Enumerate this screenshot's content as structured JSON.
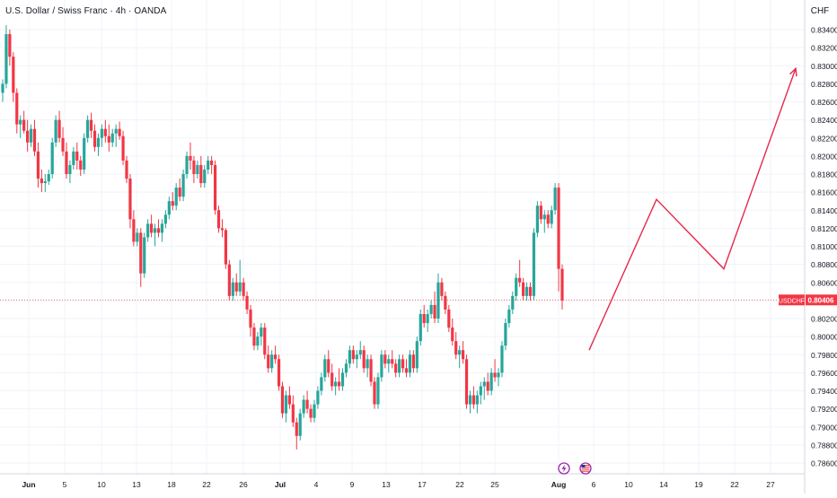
{
  "header": {
    "title": "U.S. Dollar / Swiss Franc · 4h · OANDA",
    "currency": "CHF"
  },
  "price_label": {
    "symbol": "USDCHF",
    "value": "0.80406"
  },
  "colors": {
    "up": "#26a69a",
    "down": "#f23645",
    "grid": "#f0f3fa",
    "axis_text": "#131722",
    "price_line": "#f23645",
    "projection": "#e5294a"
  },
  "event_icons": [
    "lightning-icon",
    "us-flag-icon"
  ],
  "chart_data": {
    "type": "candlestick",
    "title": "U.S. Dollar / Swiss Franc · 4h · OANDA",
    "ylabel": "CHF",
    "ylim": [
      0.785,
      0.8355
    ],
    "y_ticks": [
      "0.83400",
      "0.83200",
      "0.83000",
      "0.82800",
      "0.82600",
      "0.82400",
      "0.82200",
      "0.82000",
      "0.81800",
      "0.81600",
      "0.81400",
      "0.81200",
      "0.81000",
      "0.80800",
      "0.80600",
      "0.80400",
      "0.80200",
      "0.80000",
      "0.79800",
      "0.79600",
      "0.79400",
      "0.79200",
      "0.79000",
      "0.78800",
      "0.78600"
    ],
    "x_ticks": [
      "Jun",
      "5",
      "10",
      "13",
      "18",
      "22",
      "26",
      "Jul",
      "4",
      "9",
      "13",
      "17",
      "22",
      "25",
      "Aug",
      "6",
      "10",
      "14",
      "19",
      "22",
      "27"
    ],
    "x_ticks_bold": [
      "Jun",
      "Jul",
      "Aug"
    ],
    "last_price": 0.80406,
    "grid": true,
    "series": [
      {
        "type": "candles",
        "values": [
          [
            0.827,
            0.8285,
            0.826,
            0.828
          ],
          [
            0.828,
            0.8345,
            0.8275,
            0.8335
          ],
          [
            0.8335,
            0.834,
            0.83,
            0.831
          ],
          [
            0.831,
            0.8315,
            0.826,
            0.827
          ],
          [
            0.827,
            0.8275,
            0.8225,
            0.8235
          ],
          [
            0.8235,
            0.8245,
            0.822,
            0.824
          ],
          [
            0.824,
            0.825,
            0.8225,
            0.8228
          ],
          [
            0.8228,
            0.824,
            0.8205,
            0.8215
          ],
          [
            0.8215,
            0.8235,
            0.821,
            0.823
          ],
          [
            0.823,
            0.824,
            0.82,
            0.8205
          ],
          [
            0.8205,
            0.8215,
            0.8165,
            0.8175
          ],
          [
            0.8175,
            0.8185,
            0.816,
            0.817
          ],
          [
            0.817,
            0.818,
            0.816,
            0.8172
          ],
          [
            0.8172,
            0.8185,
            0.8168,
            0.818
          ],
          [
            0.818,
            0.822,
            0.8175,
            0.8215
          ],
          [
            0.8215,
            0.8245,
            0.821,
            0.824
          ],
          [
            0.824,
            0.825,
            0.8215,
            0.822
          ],
          [
            0.822,
            0.8232,
            0.82,
            0.8205
          ],
          [
            0.8205,
            0.8215,
            0.8175,
            0.818
          ],
          [
            0.818,
            0.8195,
            0.817,
            0.819
          ],
          [
            0.819,
            0.821,
            0.8185,
            0.8205
          ],
          [
            0.8205,
            0.8215,
            0.8185,
            0.8195
          ],
          [
            0.8195,
            0.82,
            0.8178,
            0.8185
          ],
          [
            0.8185,
            0.8225,
            0.818,
            0.822
          ],
          [
            0.822,
            0.8245,
            0.8215,
            0.824
          ],
          [
            0.824,
            0.8248,
            0.822,
            0.8228
          ],
          [
            0.8228,
            0.8235,
            0.8205,
            0.821
          ],
          [
            0.821,
            0.8225,
            0.82,
            0.822
          ],
          [
            0.822,
            0.8235,
            0.821,
            0.823
          ],
          [
            0.823,
            0.824,
            0.8215,
            0.8222
          ],
          [
            0.8222,
            0.8235,
            0.8205,
            0.8215
          ],
          [
            0.8215,
            0.823,
            0.821,
            0.8225
          ],
          [
            0.8225,
            0.8235,
            0.821,
            0.823
          ],
          [
            0.823,
            0.8238,
            0.8218,
            0.8222
          ],
          [
            0.8222,
            0.8228,
            0.819,
            0.8195
          ],
          [
            0.8195,
            0.82,
            0.817,
            0.8175
          ],
          [
            0.8175,
            0.818,
            0.812,
            0.813
          ],
          [
            0.813,
            0.814,
            0.81,
            0.8105
          ],
          [
            0.8105,
            0.812,
            0.81,
            0.8115
          ],
          [
            0.8115,
            0.812,
            0.8055,
            0.807
          ],
          [
            0.807,
            0.8115,
            0.8065,
            0.811
          ],
          [
            0.811,
            0.813,
            0.8105,
            0.8125
          ],
          [
            0.8125,
            0.8135,
            0.811,
            0.8115
          ],
          [
            0.8115,
            0.8125,
            0.81,
            0.812
          ],
          [
            0.812,
            0.813,
            0.811,
            0.8115
          ],
          [
            0.8115,
            0.813,
            0.8105,
            0.8125
          ],
          [
            0.8125,
            0.814,
            0.812,
            0.8135
          ],
          [
            0.8135,
            0.8155,
            0.813,
            0.815
          ],
          [
            0.815,
            0.816,
            0.814,
            0.8145
          ],
          [
            0.8145,
            0.817,
            0.814,
            0.8165
          ],
          [
            0.8165,
            0.8175,
            0.815,
            0.8155
          ],
          [
            0.8155,
            0.8185,
            0.815,
            0.818
          ],
          [
            0.818,
            0.8205,
            0.8175,
            0.82
          ],
          [
            0.82,
            0.8215,
            0.8185,
            0.8195
          ],
          [
            0.8195,
            0.82,
            0.817,
            0.818
          ],
          [
            0.818,
            0.8195,
            0.8175,
            0.819
          ],
          [
            0.819,
            0.82,
            0.8165,
            0.817
          ],
          [
            0.817,
            0.819,
            0.8165,
            0.8185
          ],
          [
            0.8185,
            0.82,
            0.818,
            0.8195
          ],
          [
            0.8195,
            0.82,
            0.818,
            0.819
          ],
          [
            0.819,
            0.8195,
            0.8135,
            0.814
          ],
          [
            0.814,
            0.8145,
            0.8115,
            0.812
          ],
          [
            0.812,
            0.813,
            0.811,
            0.8118
          ],
          [
            0.8118,
            0.812,
            0.8075,
            0.808
          ],
          [
            0.808,
            0.8085,
            0.804,
            0.8045
          ],
          [
            0.8045,
            0.8065,
            0.804,
            0.806
          ],
          [
            0.806,
            0.807,
            0.8045,
            0.805
          ],
          [
            0.805,
            0.8085,
            0.8045,
            0.806
          ],
          [
            0.806,
            0.8065,
            0.804,
            0.8045
          ],
          [
            0.8045,
            0.805,
            0.8025,
            0.803
          ],
          [
            0.803,
            0.8035,
            0.8,
            0.801
          ],
          [
            0.801,
            0.8015,
            0.7985,
            0.799
          ],
          [
            0.799,
            0.8005,
            0.7985,
            0.8
          ],
          [
            0.8,
            0.8015,
            0.799,
            0.801
          ],
          [
            0.801,
            0.8015,
            0.7975,
            0.798
          ],
          [
            0.798,
            0.799,
            0.796,
            0.7965
          ],
          [
            0.7965,
            0.7985,
            0.796,
            0.798
          ],
          [
            0.798,
            0.799,
            0.797,
            0.7975
          ],
          [
            0.7975,
            0.798,
            0.794,
            0.7945
          ],
          [
            0.7945,
            0.795,
            0.791,
            0.7915
          ],
          [
            0.7915,
            0.794,
            0.7905,
            0.7935
          ],
          [
            0.7935,
            0.7945,
            0.792,
            0.7925
          ],
          [
            0.7925,
            0.7935,
            0.79,
            0.7905
          ],
          [
            0.7905,
            0.791,
            0.7875,
            0.789
          ],
          [
            0.789,
            0.792,
            0.7885,
            0.7915
          ],
          [
            0.7915,
            0.7935,
            0.791,
            0.793
          ],
          [
            0.793,
            0.794,
            0.7915,
            0.792
          ],
          [
            0.792,
            0.7925,
            0.7905,
            0.791
          ],
          [
            0.791,
            0.793,
            0.7905,
            0.7925
          ],
          [
            0.7925,
            0.7945,
            0.792,
            0.794
          ],
          [
            0.794,
            0.796,
            0.7935,
            0.7955
          ],
          [
            0.7955,
            0.798,
            0.795,
            0.7975
          ],
          [
            0.7975,
            0.7985,
            0.7955,
            0.796
          ],
          [
            0.796,
            0.797,
            0.794,
            0.7945
          ],
          [
            0.7945,
            0.7955,
            0.7935,
            0.795
          ],
          [
            0.795,
            0.7965,
            0.794,
            0.7945
          ],
          [
            0.7945,
            0.7965,
            0.794,
            0.796
          ],
          [
            0.796,
            0.7975,
            0.7955,
            0.797
          ],
          [
            0.797,
            0.799,
            0.7965,
            0.7985
          ],
          [
            0.7985,
            0.799,
            0.797,
            0.7975
          ],
          [
            0.7975,
            0.7985,
            0.7965,
            0.798
          ],
          [
            0.798,
            0.7995,
            0.7975,
            0.7985
          ],
          [
            0.7985,
            0.799,
            0.796,
            0.7965
          ],
          [
            0.7965,
            0.798,
            0.7955,
            0.7975
          ],
          [
            0.7975,
            0.798,
            0.7945,
            0.795
          ],
          [
            0.795,
            0.7955,
            0.792,
            0.7925
          ],
          [
            0.7925,
            0.796,
            0.792,
            0.7955
          ],
          [
            0.7955,
            0.7985,
            0.795,
            0.798
          ],
          [
            0.798,
            0.7985,
            0.7965,
            0.797
          ],
          [
            0.797,
            0.798,
            0.796,
            0.7975
          ],
          [
            0.7975,
            0.7985,
            0.7965,
            0.797
          ],
          [
            0.797,
            0.7975,
            0.7955,
            0.796
          ],
          [
            0.796,
            0.798,
            0.7955,
            0.7975
          ],
          [
            0.7975,
            0.798,
            0.796,
            0.7965
          ],
          [
            0.7965,
            0.7975,
            0.7955,
            0.796
          ],
          [
            0.796,
            0.7985,
            0.7955,
            0.798
          ],
          [
            0.798,
            0.7985,
            0.796,
            0.7965
          ],
          [
            0.7965,
            0.8,
            0.796,
            0.7995
          ],
          [
            0.7995,
            0.803,
            0.799,
            0.8025
          ],
          [
            0.8025,
            0.8035,
            0.801,
            0.8015
          ],
          [
            0.8015,
            0.803,
            0.8005,
            0.8025
          ],
          [
            0.8025,
            0.804,
            0.802,
            0.8035
          ],
          [
            0.8035,
            0.805,
            0.8015,
            0.802
          ],
          [
            0.802,
            0.807,
            0.8015,
            0.806
          ],
          [
            0.806,
            0.8065,
            0.804,
            0.8045
          ],
          [
            0.8045,
            0.805,
            0.8025,
            0.803
          ],
          [
            0.803,
            0.8035,
            0.8005,
            0.801
          ],
          [
            0.801,
            0.802,
            0.799,
            0.7995
          ],
          [
            0.7995,
            0.8005,
            0.7975,
            0.798
          ],
          [
            0.798,
            0.799,
            0.7965,
            0.7985
          ],
          [
            0.7985,
            0.7995,
            0.797,
            0.7975
          ],
          [
            0.7975,
            0.798,
            0.792,
            0.7925
          ],
          [
            0.7925,
            0.794,
            0.7915,
            0.7935
          ],
          [
            0.7935,
            0.7945,
            0.792,
            0.7925
          ],
          [
            0.7925,
            0.794,
            0.7915,
            0.7935
          ],
          [
            0.7935,
            0.795,
            0.7925,
            0.7945
          ],
          [
            0.7945,
            0.7955,
            0.793,
            0.795
          ],
          [
            0.795,
            0.796,
            0.7935,
            0.794
          ],
          [
            0.794,
            0.7965,
            0.7935,
            0.796
          ],
          [
            0.796,
            0.7975,
            0.795,
            0.7955
          ],
          [
            0.7955,
            0.7965,
            0.7945,
            0.796
          ],
          [
            0.796,
            0.7995,
            0.7955,
            0.799
          ],
          [
            0.799,
            0.802,
            0.7985,
            0.8015
          ],
          [
            0.8015,
            0.8035,
            0.801,
            0.803
          ],
          [
            0.803,
            0.805,
            0.8025,
            0.8045
          ],
          [
            0.8045,
            0.807,
            0.804,
            0.8065
          ],
          [
            0.8065,
            0.8085,
            0.8055,
            0.806
          ],
          [
            0.806,
            0.8065,
            0.804,
            0.8045
          ],
          [
            0.8045,
            0.806,
            0.804,
            0.8055
          ],
          [
            0.8055,
            0.806,
            0.804,
            0.8045
          ],
          [
            0.8045,
            0.812,
            0.804,
            0.8115
          ],
          [
            0.8115,
            0.815,
            0.811,
            0.8145
          ],
          [
            0.8145,
            0.815,
            0.8125,
            0.813
          ],
          [
            0.813,
            0.814,
            0.8115,
            0.8135
          ],
          [
            0.8135,
            0.814,
            0.812,
            0.8125
          ],
          [
            0.8125,
            0.8145,
            0.812,
            0.814
          ],
          [
            0.814,
            0.817,
            0.8135,
            0.8165
          ],
          [
            0.8165,
            0.817,
            0.805,
            0.8075
          ],
          [
            0.8075,
            0.808,
            0.803,
            0.804
          ]
        ]
      }
    ],
    "annotations": [
      {
        "type": "projection",
        "points": [
          [
            "Aug 6",
            0.7985
          ],
          [
            "Aug 14",
            0.8152
          ],
          [
            "Aug 22",
            0.8075
          ],
          [
            "Aug 27+",
            0.8297
          ]
        ]
      }
    ]
  }
}
